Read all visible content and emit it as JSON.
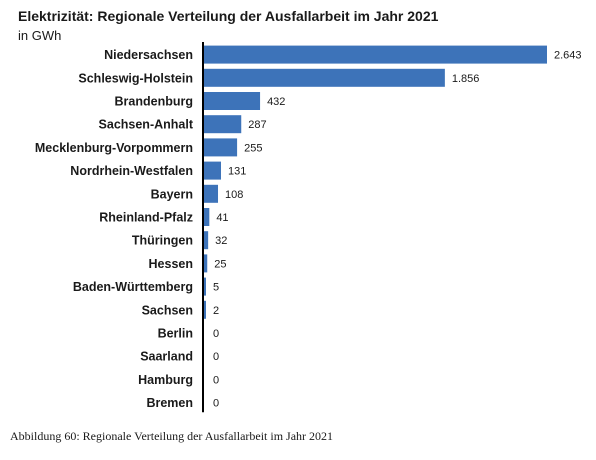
{
  "chart_data": {
    "type": "bar",
    "orientation": "horizontal",
    "title": "Elektrizität: Regionale Verteilung der Ausfallarbeit im Jahr 2021",
    "subtitle": "in GWh",
    "categories": [
      "Niedersachsen",
      "Schleswig-Holstein",
      "Brandenburg",
      "Sachsen-Anhalt",
      "Mecklenburg-Vorpommern",
      "Nordrhein-Westfalen",
      "Bayern",
      "Rheinland-Pfalz",
      "Thüringen",
      "Hessen",
      "Baden-Württemberg",
      "Sachsen",
      "Berlin",
      "Saarland",
      "Hamburg",
      "Bremen"
    ],
    "values": [
      2643,
      1856,
      432,
      287,
      255,
      131,
      108,
      41,
      32,
      25,
      5,
      2,
      0,
      0,
      0,
      0
    ],
    "value_labels": [
      "2.643",
      "1.856",
      "432",
      "287",
      "255",
      "131",
      "108",
      "41",
      "32",
      "25",
      "5",
      "2",
      "0",
      "0",
      "0",
      "0"
    ],
    "xlim": [
      0,
      2643
    ],
    "grid": false,
    "bar_color": "#3d73b9"
  },
  "caption": "Abbildung 60: Regionale Verteilung der Ausfallarbeit im Jahr 2021"
}
